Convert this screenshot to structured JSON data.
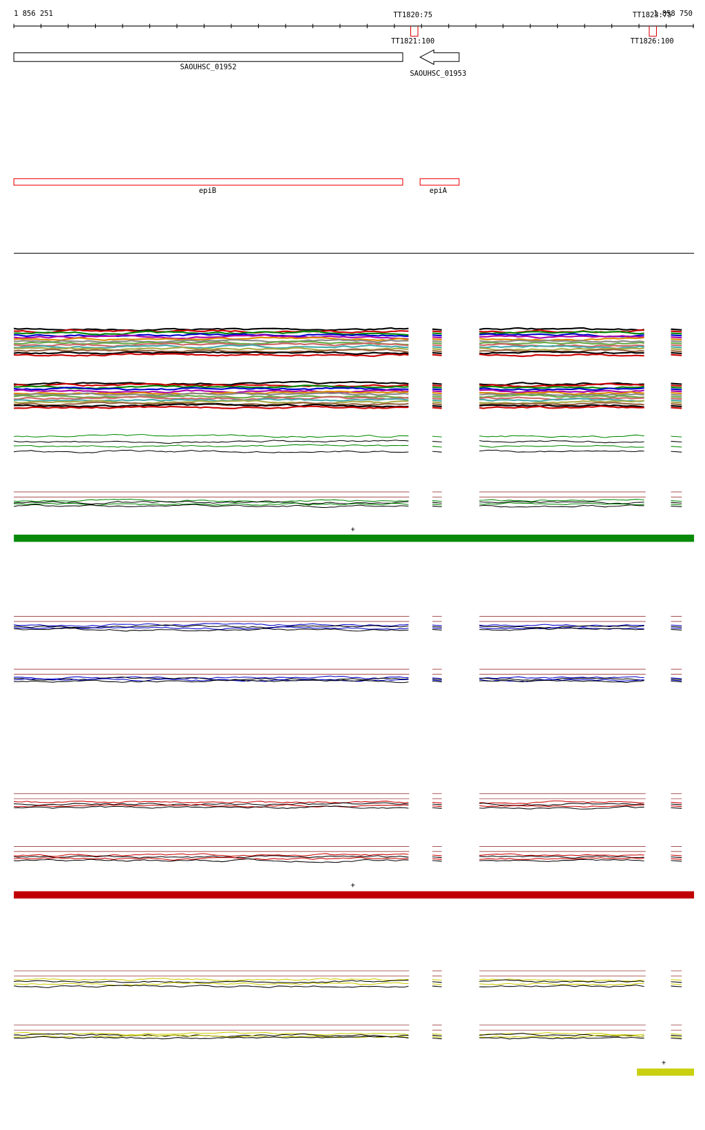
{
  "header": {
    "start": "1 856 251",
    "end": "1 858 750"
  },
  "terminators": [
    {
      "top": "TT1820:75",
      "bottom": "TT1821:100"
    },
    {
      "top": "TT1823:75",
      "bottom": "TT1826:100"
    }
  ],
  "genes": [
    {
      "label": "SAOUHSC_01952"
    },
    {
      "label": "SAOUHSC_01953"
    }
  ],
  "features": [
    {
      "label": "epiB"
    },
    {
      "label": "epiA"
    }
  ],
  "markers": [
    "+",
    "+",
    "+"
  ]
}
